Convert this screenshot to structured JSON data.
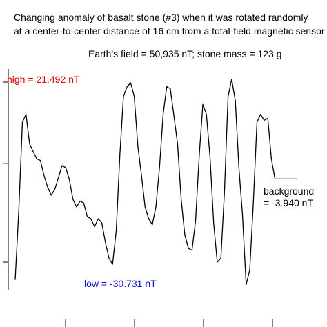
{
  "chart_data": {
    "type": "line",
    "title_lines": [
      "Changing anomaly of basalt stone (#3) when it was rotated randomly",
      "at a center-to-center distance of 16 cm from a total-field magnetic sensor"
    ],
    "info": "Earth's field = 50,935 nT; stone mass = 123 g",
    "annotations": {
      "high": {
        "text": "high = 21.492 nT",
        "color": "#e00000"
      },
      "low": {
        "text": "low = -30.731 nT",
        "color": "#1010d0"
      },
      "background": {
        "lines": [
          "background",
          "= -3.940 nT"
        ],
        "color": "#000000"
      }
    },
    "series": [
      {
        "values": [
          -29.5,
          -12.0,
          10.5,
          12.5,
          5.0,
          3.0,
          1.2,
          0.8,
          -3.0,
          -6.0,
          -8.0,
          -6.5,
          -3.5,
          -0.5,
          -1.0,
          -4.0,
          -9.0,
          -11.0,
          -9.5,
          -10.0,
          -13.5,
          -14.0,
          -16.0,
          -14.0,
          -15.0,
          -20.0,
          -24.0,
          -25.5,
          -17.0,
          2.0,
          17.0,
          19.5,
          20.5,
          17.0,
          4.5,
          -3.0,
          -11.0,
          -14.0,
          -15.5,
          -11.0,
          -1.0,
          12.5,
          19.5,
          19.0,
          12.0,
          5.0,
          -9.0,
          -18.0,
          -21.5,
          -22.0,
          -14.5,
          2.0,
          15.0,
          12.5,
          1.5,
          -15.0,
          -25.0,
          -24.0,
          -7.0,
          17.0,
          21.4,
          16.0,
          -1.0,
          -13.0,
          -30.7,
          -27.0,
          -10.0,
          10.5,
          12.5,
          11.0,
          11.5,
          1.2,
          -3.9,
          -3.9,
          -3.9,
          -3.9,
          -3.9,
          -3.9,
          -3.9
        ]
      }
    ],
    "ylim": [
      -32,
      24
    ],
    "grid": false,
    "yticks": [
      -25,
      0
    ]
  }
}
